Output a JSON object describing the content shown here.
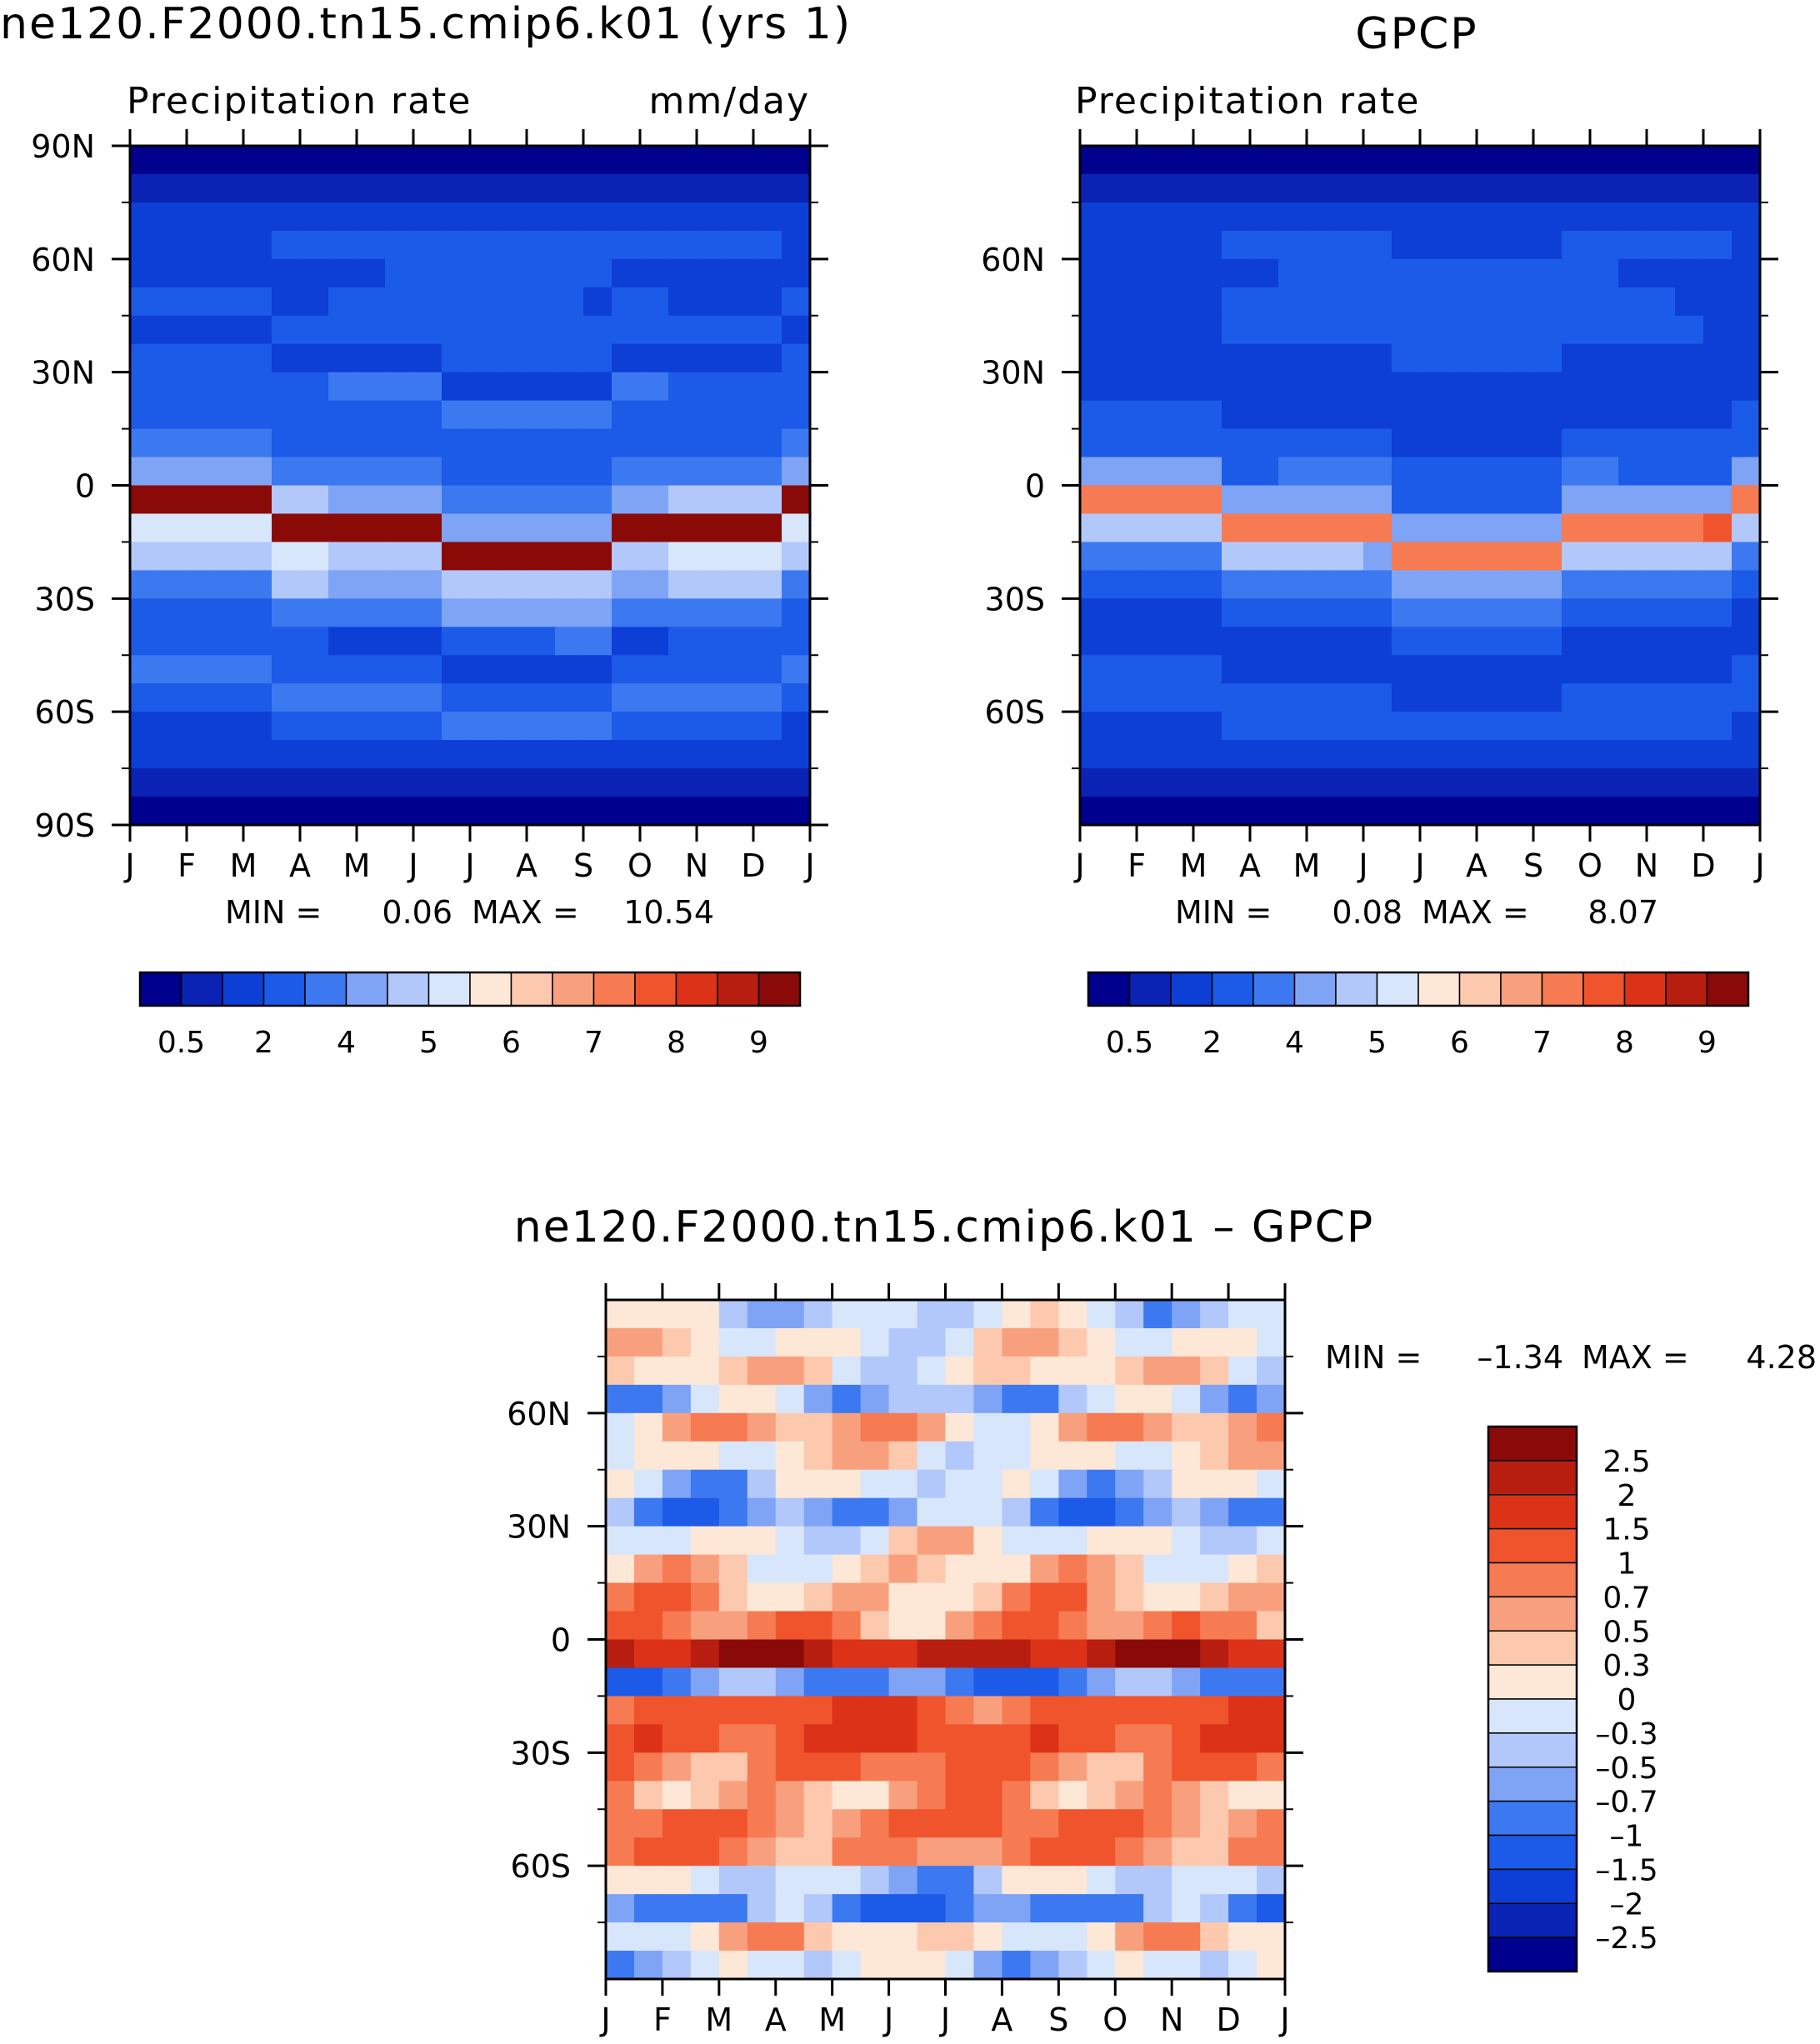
{
  "palettes": {
    "precip": [
      "#00008f",
      "#0a23b4",
      "#0d3ed6",
      "#1c5ae8",
      "#3c78f0",
      "#7fa4f6",
      "#b2c8fa",
      "#d7e6fb",
      "#fde7d6",
      "#fcc9ae",
      "#f8a07d",
      "#f67a52",
      "#f0542d",
      "#dc3218",
      "#b71e10",
      "#8a0a08"
    ],
    "diff": [
      "#00008f",
      "#0a23b4",
      "#0d3ed6",
      "#1c5ae8",
      "#3c78f0",
      "#7fa4f6",
      "#b2c8fa",
      "#d7e6fb",
      "#fde7d6",
      "#fcc9ae",
      "#f8a07d",
      "#f67a52",
      "#f0542d",
      "#dc3218",
      "#b71e10",
      "#8a0a08"
    ]
  },
  "chart_data": [
    {
      "id": "model",
      "type": "heatmap",
      "title": "ne120.F2000.tn15.cmip6.k01 (yrs 1)",
      "subtitle_left": "Precipitation rate",
      "subtitle_right": "mm/day",
      "x_tick_labels": [
        "J",
        "F",
        "M",
        "A",
        "M",
        "J",
        "J",
        "A",
        "S",
        "O",
        "N",
        "D",
        "J"
      ],
      "y_tick_labels": [
        "90N",
        "60N",
        "30N",
        "0",
        "30S",
        "60S",
        "90S"
      ],
      "y_tick_values": [
        90,
        60,
        30,
        0,
        -30,
        -60,
        -90
      ],
      "ylim": [
        -90,
        90
      ],
      "stats": {
        "min_label": "MIN =",
        "min": "0.06",
        "max_label": "MAX =",
        "max": "10.54"
      },
      "colorbar": {
        "orientation": "horizontal",
        "labels": [
          "0.5",
          "2",
          "4",
          "5",
          "6",
          "7",
          "8",
          "9"
        ]
      },
      "base": [
        0.35,
        0.7,
        1.9,
        2.6,
        1.9,
        2.0,
        2.2,
        1.8,
        3.0,
        2.3,
        2.6,
        3.3,
        4.5,
        10.0,
        5.0,
        4.5,
        3.2,
        2.0,
        2.7,
        3.5,
        2.5,
        1.7,
        0.8,
        0.35
      ]
    },
    {
      "id": "obs",
      "type": "heatmap",
      "title": "GPCP",
      "subtitle_left": "Precipitation rate",
      "x_tick_labels": [
        "J",
        "F",
        "M",
        "A",
        "M",
        "J",
        "J",
        "A",
        "S",
        "O",
        "N",
        "D",
        "J"
      ],
      "y_tick_labels": [
        "60N",
        "30N",
        "0",
        "30S",
        "60S"
      ],
      "y_tick_values": [
        60,
        30,
        0,
        -30,
        -60
      ],
      "ylim": [
        -90,
        90
      ],
      "stats": {
        "min_label": "MIN =",
        "min": "0.08",
        "max_label": "MAX =",
        "max": "8.07"
      },
      "colorbar": {
        "orientation": "horizontal",
        "labels": [
          "0.5",
          "2",
          "4",
          "5",
          "6",
          "7",
          "8",
          "9"
        ]
      },
      "base": [
        0.3,
        0.5,
        1.8,
        2.3,
        2.0,
        2.1,
        2.1,
        1.9,
        1.5,
        1.7,
        2.3,
        3.0,
        4.3,
        7.4,
        4.6,
        3.6,
        2.4,
        1.6,
        1.8,
        2.4,
        2.2,
        1.5,
        0.8,
        0.45
      ]
    },
    {
      "id": "diff",
      "type": "heatmap",
      "title": "ne120.F2000.tn15.cmip6.k01 – GPCP",
      "x_tick_labels": [
        "J",
        "F",
        "M",
        "A",
        "M",
        "J",
        "J",
        "A",
        "S",
        "O",
        "N",
        "D",
        "J"
      ],
      "y_tick_labels": [
        "60N",
        "30N",
        "0",
        "30S",
        "60S"
      ],
      "y_tick_values": [
        60,
        30,
        0,
        -30,
        -60
      ],
      "ylim": [
        -90,
        90
      ],
      "stats": {
        "min_label": "MIN =",
        "min": "–1.34",
        "max_label": "MAX =",
        "max": "4.28"
      },
      "colorbar": {
        "orientation": "vertical",
        "labels": [
          "2.5",
          "2",
          "1.5",
          "1",
          "0.7",
          "0.5",
          "0.3",
          "0",
          "–0.3",
          "–0.5",
          "–0.7",
          "–1",
          "–1.5",
          "–2",
          "–2.5"
        ]
      },
      "base": [
        -0.2,
        0.1,
        0.2,
        -0.4,
        0.5,
        0.1,
        -0.2,
        -0.6,
        0.05,
        0.3,
        0.5,
        0.7,
        2.2,
        -0.8,
        1.2,
        1.4,
        0.9,
        0.6,
        1.0,
        0.8,
        -0.3,
        -0.8,
        0.3,
        -0.2
      ]
    }
  ]
}
